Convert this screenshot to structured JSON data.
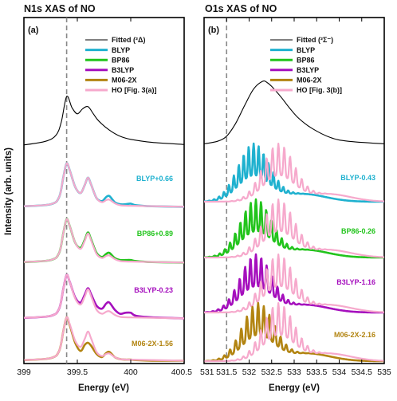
{
  "ylabel": "Intensity (arb. units)",
  "colors": {
    "fitted": "#000000",
    "BLYP": "#1fb1cf",
    "BP86": "#22c41c",
    "B3LYP": "#a50fbd",
    "M06-2X": "#b28411",
    "HO": "#f6a9cc",
    "dash": "#888888"
  },
  "chart_data": [
    {
      "type": "line",
      "title": "N1s XAS of NO",
      "panel_label": "(a)",
      "xlabel": "Energy (eV)",
      "xlim": [
        399,
        400.5
      ],
      "xticks": [
        399,
        399.5,
        400,
        400.5
      ],
      "xtick_labels": [
        "399",
        "399.5",
        "400",
        "400.5"
      ],
      "ref_line_x": 399.4,
      "legend": [
        "Fitted (²Δ)",
        "BLYP",
        "BP86",
        "B3LYP",
        "M06-2X",
        "HO [Fig. 3(a)]"
      ],
      "series": [
        {
          "name": "Fitted (²Δ)",
          "x": [
            399.0,
            399.2,
            399.3,
            399.35,
            399.4,
            399.45,
            399.5,
            399.55,
            399.6,
            399.65,
            399.7,
            399.8,
            399.9,
            400.0,
            400.2,
            400.5
          ],
          "y": [
            0.05,
            0.12,
            0.24,
            0.5,
            1.0,
            0.78,
            0.66,
            0.76,
            0.8,
            0.66,
            0.52,
            0.34,
            0.22,
            0.16,
            0.1,
            0.06
          ]
        },
        {
          "name": "BLYP",
          "annotation": "BLYP+0.66",
          "x": [
            399.0,
            399.25,
            399.33,
            399.37,
            399.4,
            399.43,
            399.48,
            399.53,
            399.57,
            399.6,
            399.63,
            399.68,
            399.73,
            399.77,
            399.8,
            399.85,
            399.9,
            399.95,
            400.0,
            400.05,
            400.2,
            400.5
          ],
          "y": [
            0.02,
            0.06,
            0.2,
            0.6,
            0.86,
            0.72,
            0.4,
            0.28,
            0.44,
            0.58,
            0.44,
            0.18,
            0.12,
            0.2,
            0.22,
            0.1,
            0.06,
            0.06,
            0.07,
            0.04,
            0.02,
            0.01
          ]
        },
        {
          "name": "HO [Fig. 3(a)]",
          "x": [
            399.0,
            399.25,
            399.33,
            399.37,
            399.4,
            399.43,
            399.48,
            399.53,
            399.57,
            399.6,
            399.63,
            399.68,
            399.73,
            399.77,
            399.8,
            399.85,
            399.9,
            400.0,
            400.5
          ],
          "y": [
            0.02,
            0.06,
            0.2,
            0.6,
            0.86,
            0.72,
            0.4,
            0.28,
            0.44,
            0.58,
            0.44,
            0.18,
            0.1,
            0.14,
            0.15,
            0.08,
            0.04,
            0.03,
            0.01
          ]
        },
        {
          "name": "BP86",
          "annotation": "BP86+0.89",
          "x": [
            399.0,
            399.25,
            399.33,
            399.37,
            399.4,
            399.43,
            399.48,
            399.53,
            399.57,
            399.6,
            399.63,
            399.68,
            399.73,
            399.77,
            399.8,
            399.85,
            399.9,
            399.95,
            400.0,
            400.05,
            400.2,
            400.5
          ],
          "y": [
            0.02,
            0.06,
            0.2,
            0.6,
            0.86,
            0.72,
            0.4,
            0.3,
            0.46,
            0.6,
            0.46,
            0.2,
            0.12,
            0.18,
            0.2,
            0.1,
            0.06,
            0.06,
            0.06,
            0.04,
            0.02,
            0.01
          ]
        },
        {
          "name": "B3LYP",
          "annotation": "B3LYP-0.23",
          "x": [
            399.0,
            399.25,
            399.33,
            399.37,
            399.4,
            399.43,
            399.48,
            399.53,
            399.57,
            399.6,
            399.63,
            399.68,
            399.73,
            399.77,
            399.8,
            399.85,
            399.9,
            399.95,
            400.0,
            400.05,
            400.2,
            400.5
          ],
          "y": [
            0.02,
            0.06,
            0.2,
            0.6,
            0.86,
            0.72,
            0.42,
            0.32,
            0.48,
            0.6,
            0.48,
            0.26,
            0.2,
            0.3,
            0.32,
            0.18,
            0.1,
            0.12,
            0.12,
            0.06,
            0.03,
            0.01
          ]
        },
        {
          "name": "M06-2X",
          "annotation": "M06-2X-1.56",
          "x": [
            399.0,
            399.25,
            399.33,
            399.37,
            399.4,
            399.43,
            399.48,
            399.53,
            399.57,
            399.6,
            399.63,
            399.68,
            399.73,
            399.77,
            399.8,
            399.85,
            399.9,
            399.95,
            400.0,
            400.05,
            400.2,
            400.5
          ],
          "y": [
            0.02,
            0.06,
            0.2,
            0.6,
            0.86,
            0.7,
            0.36,
            0.2,
            0.32,
            0.36,
            0.3,
            0.14,
            0.08,
            0.16,
            0.18,
            0.08,
            0.04,
            0.03,
            0.03,
            0.02,
            0.01,
            0.01
          ]
        }
      ]
    },
    {
      "type": "line",
      "title": "O1s XAS of NO",
      "panel_label": "(b)",
      "xlabel": "Energy (eV)",
      "xlim": [
        531,
        535
      ],
      "xticks": [
        531,
        531.5,
        532,
        532.5,
        533,
        533.5,
        534,
        534.5,
        535
      ],
      "xtick_labels": [
        "531",
        "531.5",
        "532",
        "532.5",
        "533",
        "533.5",
        "534",
        "534.5",
        "535"
      ],
      "ref_line_x": 531.5,
      "legend": [
        "Fitted (²Σ⁻)",
        "BLYP",
        "BP86",
        "B3LYP",
        "M06-2X",
        "HO [Fig. 3(b)]"
      ],
      "series": [
        {
          "name": "Fitted (²Σ⁻)",
          "x": [
            531.0,
            531.3,
            531.5,
            531.7,
            531.9,
            532.1,
            532.3,
            532.4,
            532.5,
            532.7,
            532.9,
            533.1,
            533.4,
            533.8,
            534.2,
            535.0
          ],
          "y": [
            0.02,
            0.06,
            0.14,
            0.34,
            0.62,
            0.88,
            1.0,
            0.98,
            0.92,
            0.76,
            0.58,
            0.42,
            0.26,
            0.12,
            0.06,
            0.02
          ]
        },
        {
          "name": "BLYP",
          "annotation": "BLYP-0.43",
          "peak_center": 532.1,
          "peak_height": 0.9,
          "peak_spacing": 0.11,
          "peak_count": 12
        },
        {
          "name": "BP86",
          "annotation": "BP86-0.26",
          "peak_center": 532.15,
          "peak_height": 0.9,
          "peak_spacing": 0.115,
          "peak_count": 12
        },
        {
          "name": "B3LYP",
          "annotation": "B3LYP-1.16",
          "peak_center": 532.15,
          "peak_height": 0.9,
          "peak_spacing": 0.12,
          "peak_count": 12
        },
        {
          "name": "M06-2X",
          "annotation": "M06-2X-2.16",
          "peak_center": 532.2,
          "peak_height": 0.9,
          "peak_spacing": 0.125,
          "peak_count": 13
        },
        {
          "name": "HO [Fig. 3(b)]",
          "peak_center": 532.65,
          "peak_height": 0.9,
          "peak_spacing": 0.13,
          "peak_count": 14
        }
      ]
    }
  ]
}
